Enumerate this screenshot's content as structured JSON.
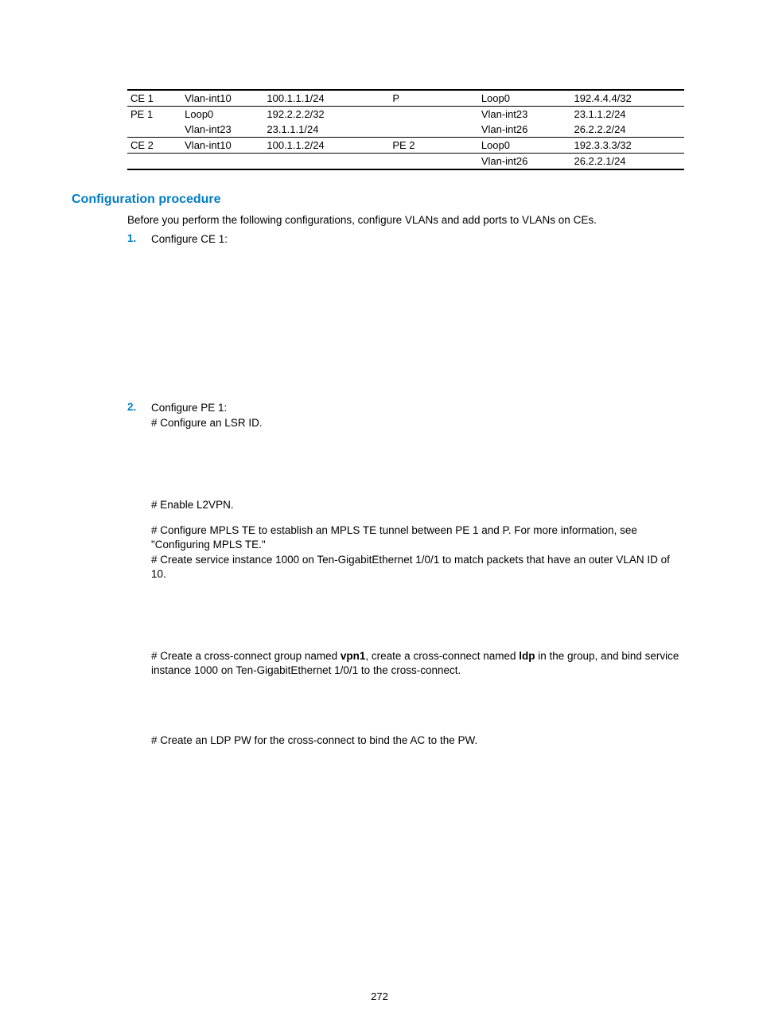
{
  "table": {
    "rows": [
      {
        "dev": "CE 1",
        "if": "Vlan-int10",
        "ip": "100.1.1.1/24",
        "dev2": "P",
        "if2": "Loop0",
        "ip2": "192.4.4.4/32"
      },
      {
        "dev": "PE 1",
        "if": "Loop0",
        "ip": "192.2.2.2/32",
        "dev2": "",
        "if2": "Vlan-int23",
        "ip2": "23.1.1.2/24"
      },
      {
        "dev": "",
        "if": "Vlan-int23",
        "ip": "23.1.1.1/24",
        "dev2": "",
        "if2": "Vlan-int26",
        "ip2": "26.2.2.2/24"
      },
      {
        "dev": "CE 2",
        "if": "Vlan-int10",
        "ip": "100.1.1.2/24",
        "dev2": "PE 2",
        "if2": "Loop0",
        "ip2": "192.3.3.3/32"
      },
      {
        "dev": "",
        "if": "",
        "ip": "",
        "dev2": "",
        "if2": "Vlan-int26",
        "ip2": "26.2.2.1/24"
      }
    ]
  },
  "heading": "Configuration procedure",
  "intro": "Before you perform the following configurations, configure VLANs and add ports to VLANs on CEs.",
  "steps": {
    "s1": {
      "num": "1.",
      "label": "Configure CE 1:"
    },
    "s2": {
      "num": "2.",
      "label": "Configure PE 1:",
      "p1": "# Configure an LSR ID.",
      "p2": "# Enable L2VPN.",
      "p3a": "# Configure MPLS TE to establish an MPLS TE tunnel between PE 1 and P. For more information, see \"Configuring MPLS TE.\"",
      "p3b": "# Create service instance 1000 on Ten-GigabitEthernet 1/0/1 to match packets that have an outer VLAN ID of 10.",
      "p4a": "# Create a cross-connect group named ",
      "p4b": "vpn1",
      "p4c": ", create a cross-connect named ",
      "p4d": "ldp",
      "p4e": " in the group, and bind service instance 1000 on Ten-GigabitEthernet 1/0/1 to the cross-connect.",
      "p5": "# Create an LDP PW for the cross-connect to bind the AC to the PW."
    }
  },
  "page_number": "272"
}
